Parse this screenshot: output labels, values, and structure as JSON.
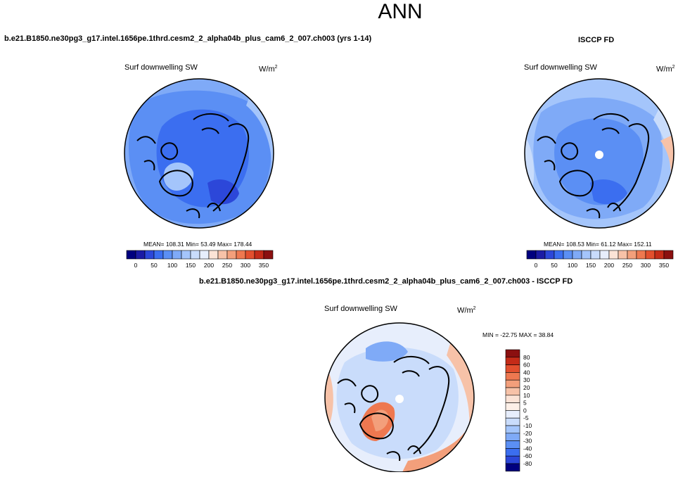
{
  "header": {
    "title": "ANN"
  },
  "panels": {
    "model": {
      "case_title": "b.e21.B1850.ne30pg3_g17.intel.1656pe.1thrd.cesm2_2_alpha04b_plus_cam6_2_007.ch003 (yrs 1-14)",
      "variable": "Surf downwelling SW",
      "units_base": "W/m",
      "units_exp": "2",
      "stats": "MEAN= 108.31  Min=  53.49  Max= 178.44"
    },
    "obs": {
      "case_title": "ISCCP FD",
      "variable": "Surf downwelling SW",
      "units_base": "W/m",
      "units_exp": "2",
      "stats": "MEAN= 108.53  Min=  61.12  Max= 152.11"
    },
    "diff": {
      "case_title": "b.e21.B1850.ne30pg3_g17.intel.1656pe.1thrd.cesm2_2_alpha04b_plus_cam6_2_007.ch003 - ISCCP FD",
      "variable": "Surf downwelling SW",
      "units_base": "W/m",
      "units_exp": "2",
      "stats": "MIN = -22.75 MAX =  38.84"
    }
  },
  "colorbars": {
    "abs_ticks": [
      "0",
      "50",
      "100",
      "150",
      "200",
      "250",
      "300",
      "350"
    ],
    "abs_colors": [
      "#00007f",
      "#1b1ba5",
      "#2c47d9",
      "#3b6ef0",
      "#5b8ff4",
      "#7faaf7",
      "#a4c5fb",
      "#c9dcfb",
      "#e7eefc",
      "#fbe3d6",
      "#f7c2a8",
      "#f39f7b",
      "#ee7850",
      "#e24f2e",
      "#c42b18",
      "#8b1010"
    ],
    "diff_ticks": [
      "80",
      "60",
      "40",
      "30",
      "20",
      "10",
      "5",
      "0",
      "-5",
      "-10",
      "-20",
      "-30",
      "-40",
      "-60",
      "-80"
    ],
    "diff_colors": [
      "#8b1010",
      "#c42b18",
      "#e24f2e",
      "#ee7850",
      "#f39f7b",
      "#f7c2a8",
      "#fbe3d6",
      "#fdf0e8",
      "#e7eefc",
      "#c9dcfb",
      "#a4c5fb",
      "#7faaf7",
      "#5b8ff4",
      "#3b6ef0",
      "#2c47d9",
      "#00007f"
    ]
  }
}
